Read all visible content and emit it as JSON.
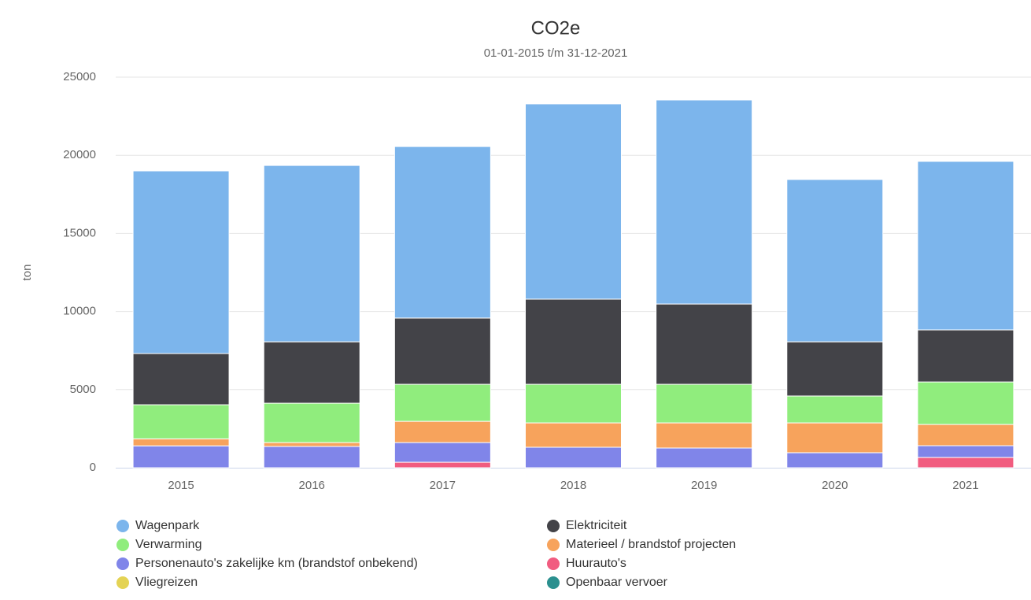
{
  "chart_data": {
    "type": "stacked_bar",
    "title": "CO2e",
    "subtitle": "01-01-2015 t/m 31-12-2021",
    "y_label": "ton",
    "categories": [
      "2015",
      "2016",
      "2017",
      "2018",
      "2019",
      "2020",
      "2021"
    ],
    "series": [
      {
        "name": "Wagenpark",
        "color": "#7cb5ec",
        "values": [
          11690,
          11290,
          10980,
          12500,
          13060,
          10390,
          10790
        ]
      },
      {
        "name": "Elektriciteit",
        "color": "#434348",
        "values": [
          3280,
          3930,
          4240,
          5450,
          5140,
          3470,
          3330
        ]
      },
      {
        "name": "Verwarming",
        "color": "#90ed7d",
        "values": [
          2180,
          2520,
          2370,
          2470,
          2470,
          1720,
          2720
        ]
      },
      {
        "name": "Materieel / brandstof projecten",
        "color": "#f7a35c",
        "values": [
          450,
          250,
          1360,
          1560,
          1610,
          1910,
          1360
        ]
      },
      {
        "name": "Personenauto's zakelijke km (brandstof onbekend)",
        "color": "#8085e9",
        "values": [
          1400,
          1360,
          1260,
          1310,
          1260,
          960,
          750
        ]
      },
      {
        "name": "Huurauto's",
        "color": "#f15c80",
        "values": [
          0,
          0,
          350,
          0,
          0,
          0,
          660
        ]
      },
      {
        "name": "Vliegreizen",
        "color": "#e4d354",
        "values": [
          0,
          0,
          0,
          0,
          0,
          0,
          0
        ]
      },
      {
        "name": "Openbaar vervoer",
        "color": "#2b908f",
        "values": [
          0,
          0,
          0,
          0,
          0,
          0,
          0
        ]
      }
    ],
    "ylim": [
      0,
      25000
    ],
    "yticks": [
      0,
      5000,
      10000,
      15000,
      20000,
      25000
    ],
    "grid": true
  }
}
